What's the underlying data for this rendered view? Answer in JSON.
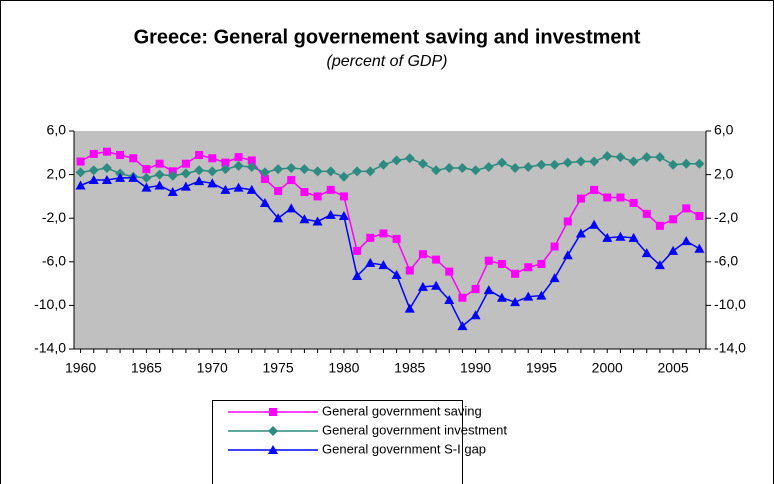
{
  "chart_data": {
    "type": "line",
    "title": "Greece: General governement saving and investment",
    "subtitle": "(percent of GDP)",
    "x": [
      1960,
      1961,
      1962,
      1963,
      1964,
      1965,
      1966,
      1967,
      1968,
      1969,
      1970,
      1971,
      1972,
      1973,
      1974,
      1975,
      1976,
      1977,
      1978,
      1979,
      1980,
      1981,
      1982,
      1983,
      1984,
      1985,
      1986,
      1987,
      1988,
      1989,
      1990,
      1991,
      1992,
      1993,
      1994,
      1995,
      1996,
      1997,
      1998,
      1999,
      2000,
      2001,
      2002,
      2003,
      2004,
      2005,
      2006,
      2007
    ],
    "xlim": [
      1959.5,
      2007.5
    ],
    "xticks": [
      1960,
      1965,
      1970,
      1975,
      1980,
      1985,
      1990,
      1995,
      2000,
      2005
    ],
    "ylim": [
      -14,
      6
    ],
    "yticks": [
      {
        "value": 6,
        "label": "6,0"
      },
      {
        "value": 2,
        "label": "2,0"
      },
      {
        "value": -2,
        "label": "-2,0"
      },
      {
        "value": -6,
        "label": "-6,0"
      },
      {
        "value": -10,
        "label": "-10,0"
      },
      {
        "value": -14,
        "label": "-14,0"
      }
    ],
    "series": [
      {
        "name": "General government saving",
        "color": "#ff00ff",
        "marker": "square",
        "values": [
          3.2,
          3.9,
          4.1,
          3.8,
          3.5,
          2.5,
          3.0,
          2.3,
          3.0,
          3.8,
          3.5,
          3.1,
          3.6,
          3.3,
          1.6,
          0.5,
          1.5,
          0.4,
          0.0,
          0.6,
          0.0,
          -5.0,
          -3.8,
          -3.4,
          -3.9,
          -6.8,
          -5.3,
          -5.8,
          -6.9,
          -9.3,
          -8.5,
          -5.9,
          -6.2,
          -7.1,
          -6.5,
          -6.2,
          -4.6,
          -2.3,
          -0.2,
          0.6,
          -0.1,
          -0.1,
          -0.6,
          -1.6,
          -2.7,
          -2.1,
          -1.1,
          -1.8
        ]
      },
      {
        "name": "General government investment",
        "color": "#2e8b7f",
        "marker": "diamond",
        "values": [
          2.2,
          2.4,
          2.6,
          2.1,
          1.8,
          1.7,
          2.0,
          1.9,
          2.1,
          2.4,
          2.3,
          2.5,
          2.8,
          2.7,
          2.2,
          2.5,
          2.6,
          2.5,
          2.3,
          2.3,
          1.8,
          2.3,
          2.3,
          2.9,
          3.3,
          3.5,
          3.0,
          2.4,
          2.6,
          2.6,
          2.4,
          2.7,
          3.1,
          2.6,
          2.7,
          2.9,
          2.9,
          3.1,
          3.2,
          3.2,
          3.7,
          3.6,
          3.2,
          3.6,
          3.6,
          2.9,
          3.0,
          3.0
        ]
      },
      {
        "name": "General government S-I gap",
        "color": "#0000ff",
        "marker": "triangle",
        "values": [
          1.0,
          1.5,
          1.5,
          1.7,
          1.7,
          0.8,
          1.0,
          0.4,
          0.9,
          1.4,
          1.2,
          0.6,
          0.8,
          0.6,
          -0.6,
          -2.0,
          -1.1,
          -2.1,
          -2.3,
          -1.7,
          -1.8,
          -7.3,
          -6.1,
          -6.3,
          -7.2,
          -10.3,
          -8.3,
          -8.2,
          -9.5,
          -11.9,
          -10.9,
          -8.6,
          -9.3,
          -9.7,
          -9.2,
          -9.1,
          -7.5,
          -5.4,
          -3.4,
          -2.6,
          -3.8,
          -3.7,
          -3.8,
          -5.2,
          -6.3,
          -5.0,
          -4.1,
          -4.8
        ]
      }
    ]
  }
}
